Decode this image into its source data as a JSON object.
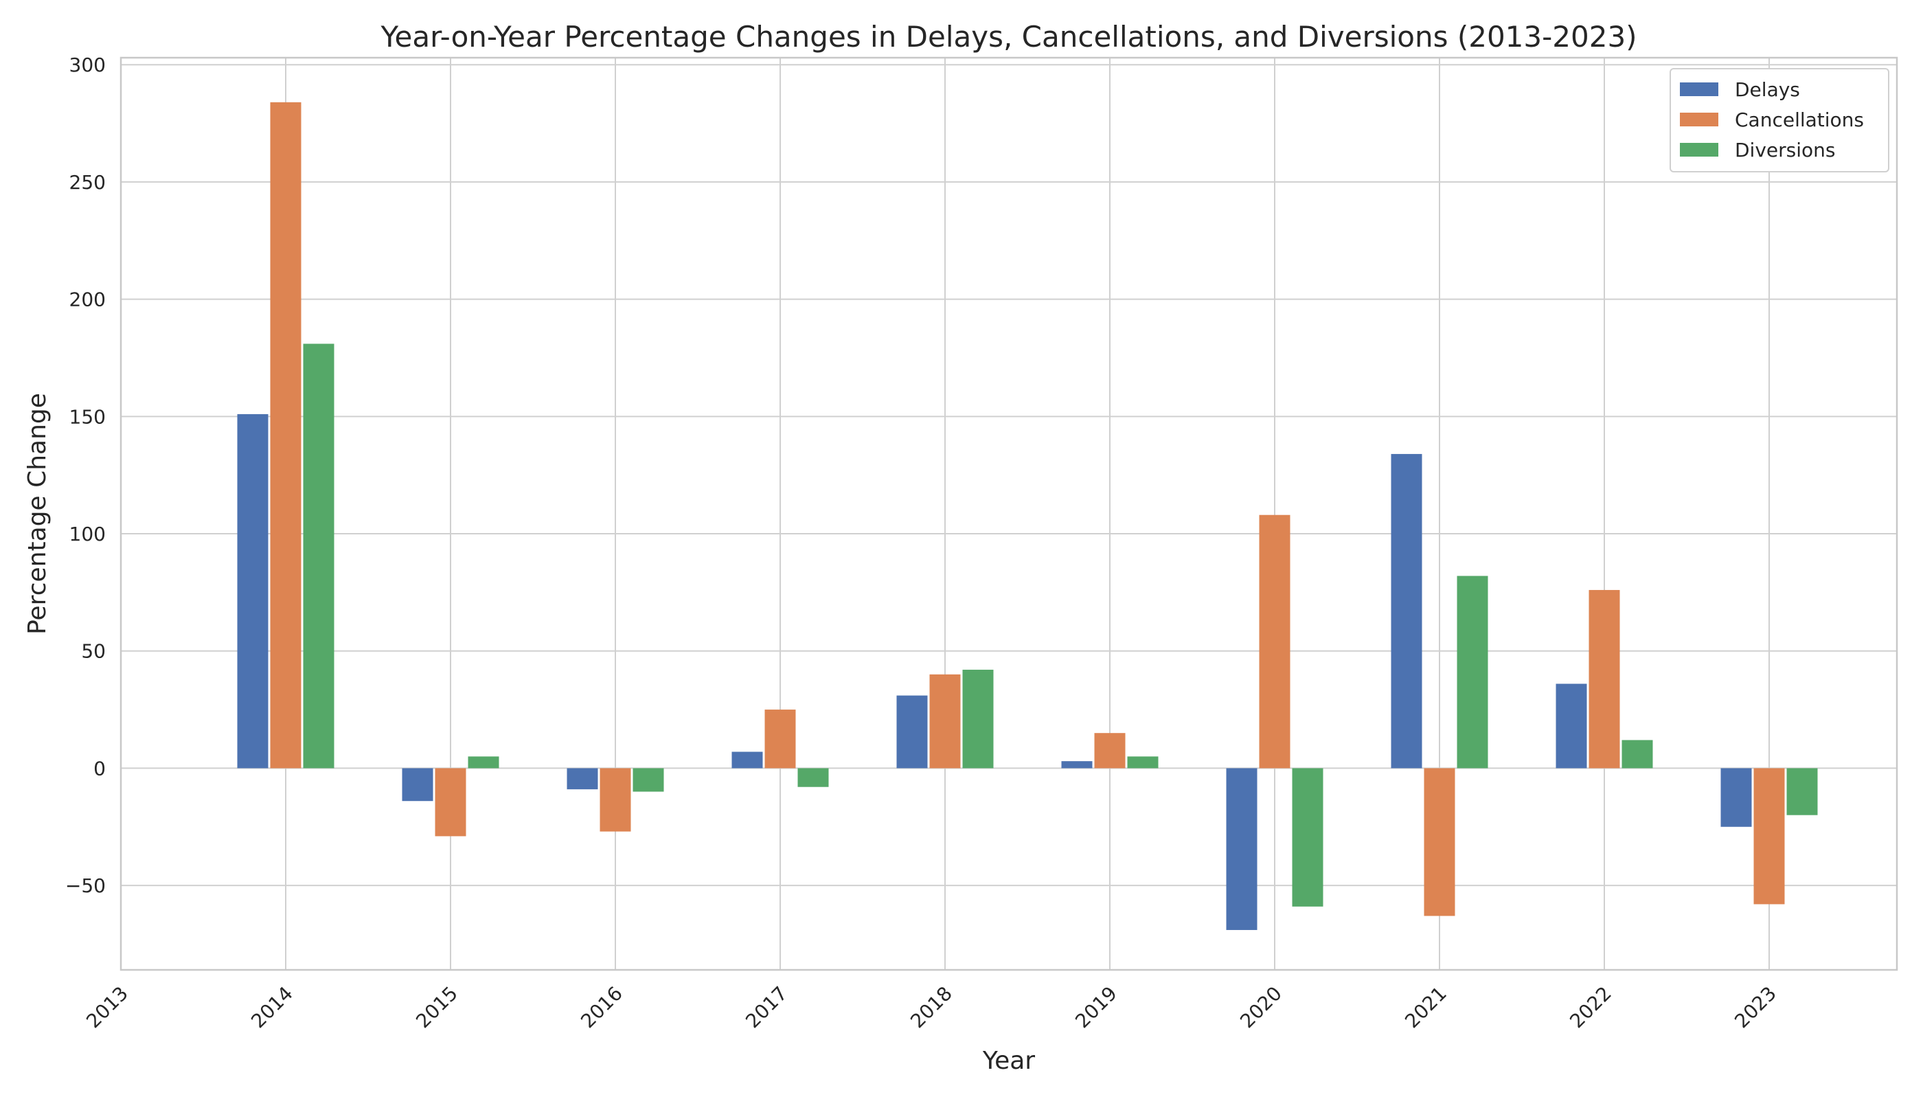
{
  "chart_data": {
    "type": "bar",
    "title": "Year-on-Year Percentage Changes in Delays, Cancellations, and Diversions (2013-2023)",
    "xlabel": "Year",
    "ylabel": "Percentage Change",
    "categories": [
      "2013",
      "2014",
      "2015",
      "2016",
      "2017",
      "2018",
      "2019",
      "2020",
      "2021",
      "2022",
      "2023"
    ],
    "ylim": [
      -86,
      303
    ],
    "yticks": [
      -50,
      0,
      50,
      100,
      150,
      200,
      250,
      300
    ],
    "ytick_labels": [
      "−50",
      "0",
      "50",
      "100",
      "150",
      "200",
      "250",
      "300"
    ],
    "grid": true,
    "legend_position": "top-right",
    "series": [
      {
        "name": "Delays",
        "color": "#4c72b0",
        "values": [
          null,
          151,
          -14,
          -9,
          7,
          31,
          3,
          -69,
          134,
          36,
          -25
        ]
      },
      {
        "name": "Cancellations",
        "color": "#dd8452",
        "values": [
          null,
          284,
          -29,
          -27,
          25,
          40,
          15,
          108,
          -63,
          76,
          -58
        ]
      },
      {
        "name": "Diversions",
        "color": "#55a868",
        "values": [
          null,
          181,
          5,
          -10,
          -8,
          42,
          5,
          -59,
          82,
          12,
          -20
        ]
      }
    ]
  }
}
